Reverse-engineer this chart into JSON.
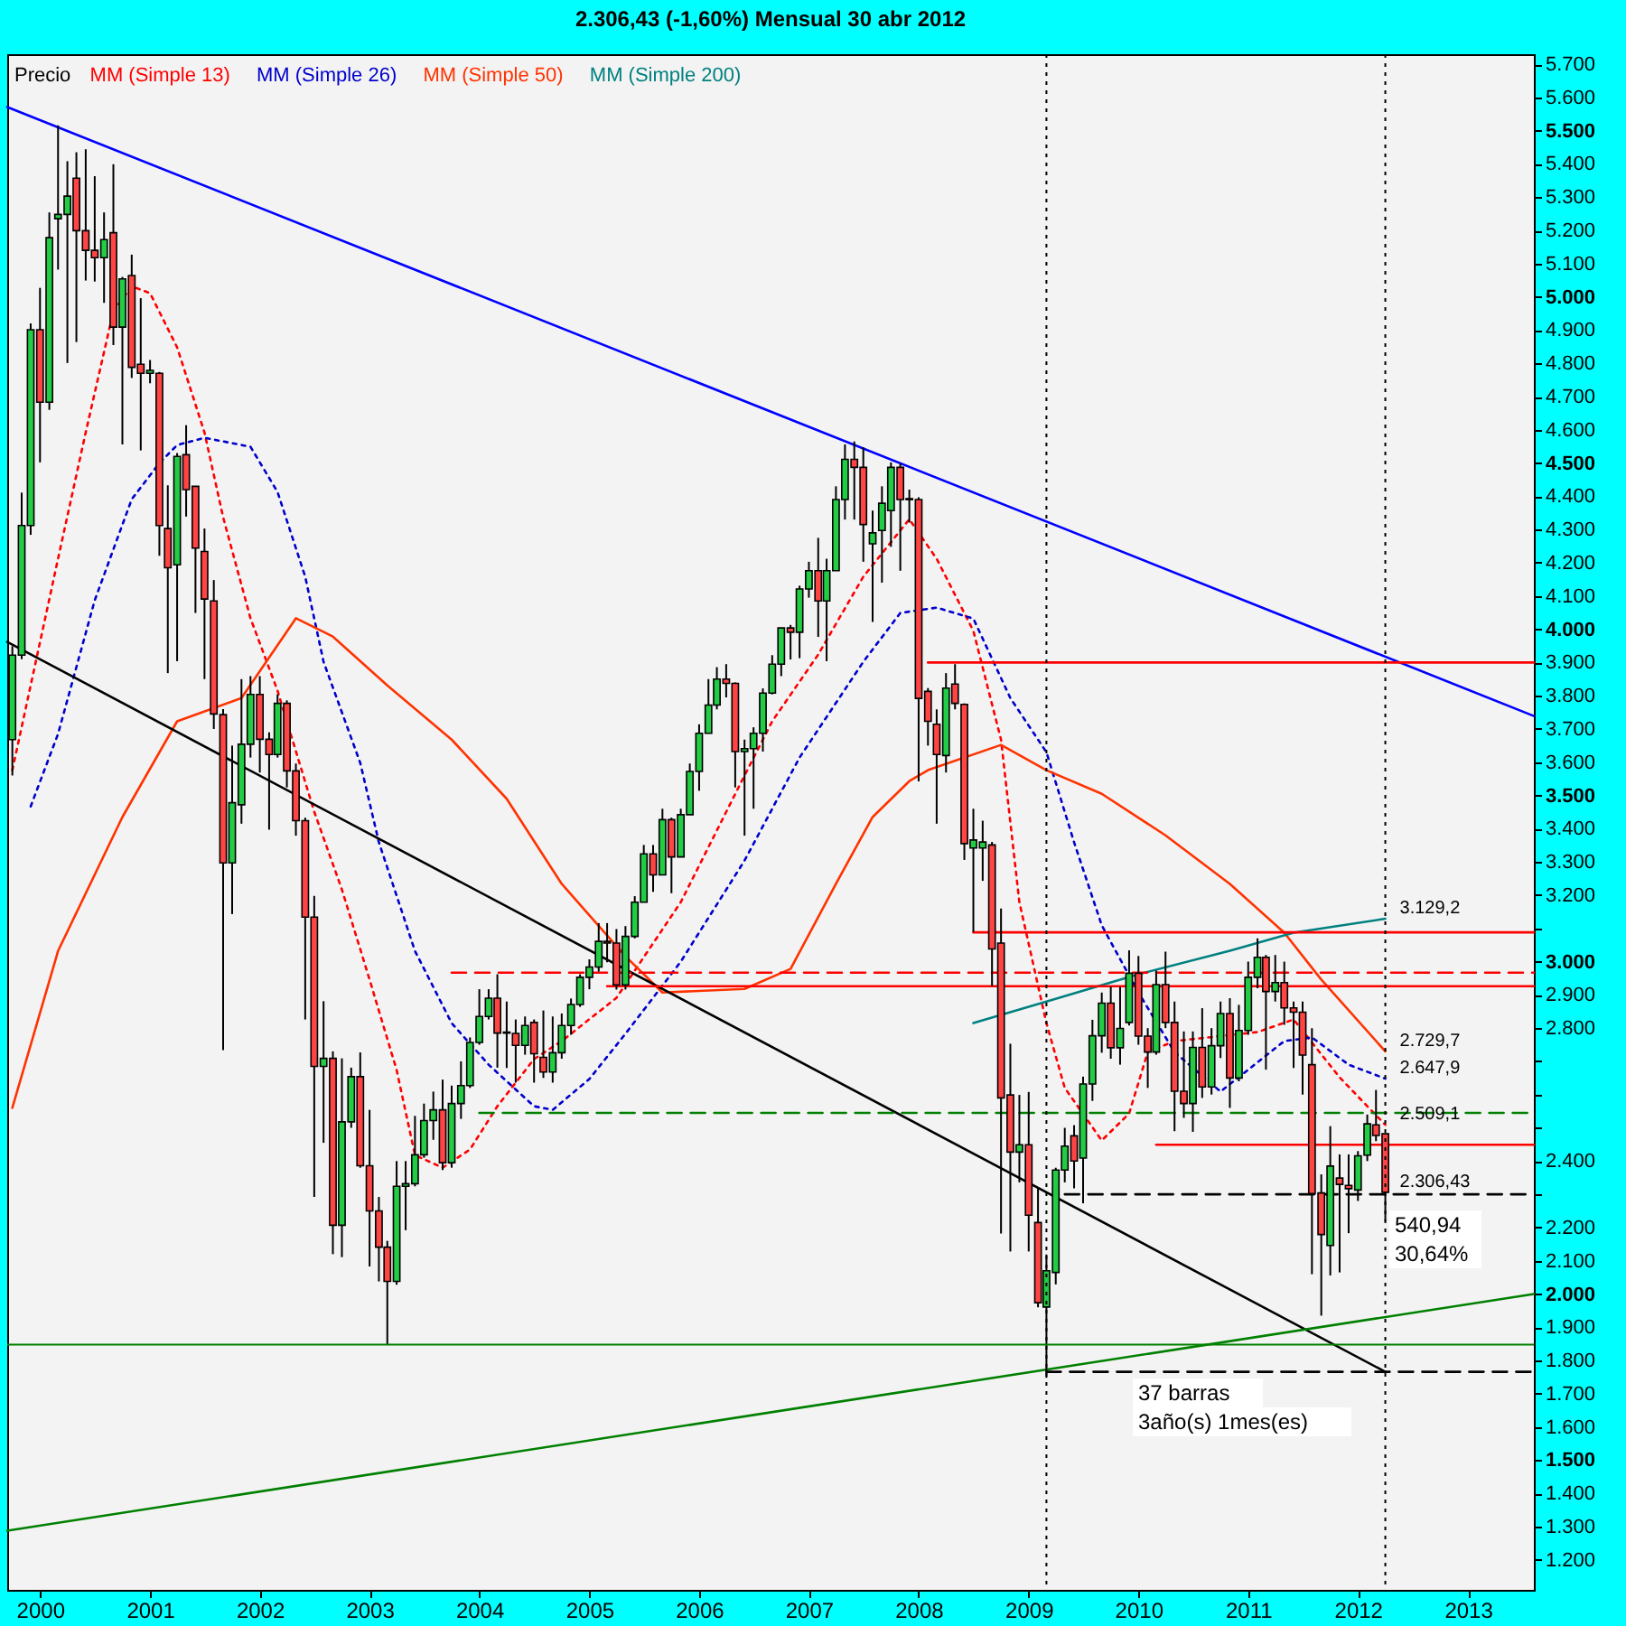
{
  "chart_data": {
    "type": "candlestick",
    "title": "2.306,43 (-1,60%)    Mensual  30 abr 2012",
    "legend": "top left",
    "xlim": [
      "1999-09-14",
      "2013-08-08"
    ],
    "ylim": [
      1110,
      5730
    ],
    "xticks": [
      "2000",
      "2001",
      "2002",
      "2003",
      "2004",
      "2005",
      "2006",
      "2007",
      "2008",
      "2009",
      "2010",
      "2011",
      "2012",
      "2013"
    ],
    "yticks": [
      {
        "value": 1200,
        "label": "1.200"
      },
      {
        "value": 1300,
        "label": "1.300"
      },
      {
        "value": 1400,
        "label": "1.400"
      },
      {
        "value": 1500,
        "label": "1.500"
      },
      {
        "value": 1600,
        "label": "1.600"
      },
      {
        "value": 1700,
        "label": "1.700"
      },
      {
        "value": 1800,
        "label": "1.800"
      },
      {
        "value": 1900,
        "label": "1.900"
      },
      {
        "value": 2000,
        "label": "2.000"
      },
      {
        "value": 2100,
        "label": "2.100"
      },
      {
        "value": 2200,
        "label": "2.200"
      },
      {
        "value": 2300,
        "label": null
      },
      {
        "value": 2400,
        "label": "2.400"
      },
      {
        "value": 2500,
        "label": null
      },
      {
        "value": 2600,
        "label": null
      },
      {
        "value": 2700,
        "label": null
      },
      {
        "value": 2800,
        "label": "2.800"
      },
      {
        "value": 2900,
        "label": "2.900"
      },
      {
        "value": 3000,
        "label": "3.000"
      },
      {
        "value": 3100,
        "label": null
      },
      {
        "value": 3200,
        "label": "3.200"
      },
      {
        "value": 3300,
        "label": "3.300"
      },
      {
        "value": 3400,
        "label": "3.400"
      },
      {
        "value": 3500,
        "label": "3.500"
      },
      {
        "value": 3600,
        "label": "3.600"
      },
      {
        "value": 3700,
        "label": "3.700"
      },
      {
        "value": 3800,
        "label": "3.800"
      },
      {
        "value": 3900,
        "label": "3.900"
      },
      {
        "value": 4000,
        "label": "4.000"
      },
      {
        "value": 4100,
        "label": "4.100"
      },
      {
        "value": 4200,
        "label": "4.200"
      },
      {
        "value": 4300,
        "label": "4.300"
      },
      {
        "value": 4400,
        "label": "4.400"
      },
      {
        "value": 4500,
        "label": "4.500"
      },
      {
        "value": 4600,
        "label": "4.600"
      },
      {
        "value": 4700,
        "label": "4.700"
      },
      {
        "value": 4800,
        "label": "4.800"
      },
      {
        "value": 4900,
        "label": "4.900"
      },
      {
        "value": 5000,
        "label": "5.000"
      },
      {
        "value": 5100,
        "label": "5.100"
      },
      {
        "value": 5200,
        "label": "5.200"
      },
      {
        "value": 5300,
        "label": "5.300"
      },
      {
        "value": 5400,
        "label": "5.400"
      },
      {
        "value": 5500,
        "label": "5.500"
      },
      {
        "value": 5600,
        "label": "5.600"
      },
      {
        "value": 5700,
        "label": "5.700"
      }
    ],
    "series": [
      {
        "name": "Precio",
        "colors": [
          "#22cc44",
          "#22cc44",
          "#22cc44",
          "#ff4444",
          "#22cc44",
          "#22cc44",
          "#22cc44",
          "#ff4444",
          "#ff4444",
          "#ff4444",
          "#22cc44",
          "#ff4444",
          "#22cc44",
          "#ff4444",
          "#ff4444",
          "#22cc44",
          "#ff4444",
          "#ff4444",
          "#22cc44",
          "#ff4444",
          "#ff4444",
          "#ff4444",
          "#ff4444",
          "#ff4444",
          "#22cc44",
          "#22cc44",
          "#22cc44",
          "#ff4444",
          "#ff4444",
          "#22cc44",
          "#ff4444",
          "#ff4444",
          "#ff4444",
          "#ff4444",
          "#22cc44",
          "#ff4444",
          "#22cc44",
          "#22cc44",
          "#ff4444",
          "#ff4444",
          "#ff4444",
          "#ff4444",
          "#22cc44",
          "#22cc44",
          "#22cc44",
          "#22cc44",
          "#22cc44",
          "#ff4444",
          "#22cc44",
          "#22cc44",
          "#22cc44",
          "#22cc44",
          "#22cc44",
          "#ff4444",
          "#22cc44",
          "#ff4444",
          "#22cc44",
          "#ff4444",
          "#ff4444",
          "#22cc44",
          "#22cc44",
          "#22cc44",
          "#22cc44",
          "#22cc44",
          "#22cc44",
          "#ff4444",
          "#ff4444",
          "#22cc44",
          "#22cc44",
          "#22cc44",
          "#ff4444",
          "#22cc44",
          "#ff4444",
          "#22cc44",
          "#22cc44",
          "#22cc44",
          "#22cc44",
          "#22cc44",
          "#ff4444",
          "#ff4444",
          "#22cc44",
          "#22cc44",
          "#22cc44",
          "#22cc44",
          "#22cc44",
          "#ff4444",
          "#22cc44",
          "#22cc44",
          "#ff4444",
          "#22cc44",
          "#22cc44",
          "#22cc44",
          "#ff4444",
          "#ff4444",
          "#22cc44",
          "#22cc44",
          "#22cc44",
          "#ff4444",
          "#22cc44",
          "#ff4444",
          "#ff4444",
          "#ff4444",
          "#22cc44",
          "#ff4444",
          "#ff4444",
          "#22cc44",
          "#22cc44",
          "#ff4444",
          "#ff4444",
          "#ff4444",
          "#22cc44",
          "#ff4444",
          "#ff4444",
          "#22cc44",
          "#22cc44",
          "#22cc44",
          "#ff4444",
          "#22cc44",
          "#22cc44",
          "#22cc44",
          "#ff4444",
          "#22cc44",
          "#22cc44",
          "#ff4444",
          "#ff4444",
          "#22cc44",
          "#ff4444",
          "#ff4444",
          "#ff4444",
          "#22cc44",
          "#ff4444",
          "#22cc44",
          "#22cc44",
          "#ff4444",
          "#22cc44",
          "#22cc44",
          "#22cc44",
          "#ff4444",
          "#22cc44",
          "#ff4444",
          "#ff4444",
          "#ff4444",
          "#ff4444",
          "#ff4444",
          "#22cc44",
          "#ff4444",
          "#ff4444",
          "#22cc44",
          "#22cc44",
          "#ff4444",
          "#ff4444"
        ],
        "x": [
          "1999-10",
          "1999-11",
          "1999-12",
          "2000-01",
          "2000-02",
          "2000-03",
          "2000-04",
          "2000-05",
          "2000-06",
          "2000-07",
          "2000-08",
          "2000-09",
          "2000-10",
          "2000-11",
          "2000-12",
          "2001-01",
          "2001-02",
          "2001-03",
          "2001-04",
          "2001-05",
          "2001-06",
          "2001-07",
          "2001-08",
          "2001-09",
          "2001-10",
          "2001-11",
          "2001-12",
          "2002-01",
          "2002-02",
          "2002-03",
          "2002-04",
          "2002-05",
          "2002-06",
          "2002-07",
          "2002-08",
          "2002-09",
          "2002-10",
          "2002-11",
          "2002-12",
          "2003-01",
          "2003-02",
          "2003-03",
          "2003-04",
          "2003-05",
          "2003-06",
          "2003-07",
          "2003-08",
          "2003-09",
          "2003-10",
          "2003-11",
          "2003-12",
          "2004-01",
          "2004-02",
          "2004-03",
          "2004-04",
          "2004-05",
          "2004-06",
          "2004-07",
          "2004-08",
          "2004-09",
          "2004-10",
          "2004-11",
          "2004-12",
          "2005-01",
          "2005-02",
          "2005-03",
          "2005-04",
          "2005-05",
          "2005-06",
          "2005-07",
          "2005-08",
          "2005-09",
          "2005-10",
          "2005-11",
          "2005-12",
          "2006-01",
          "2006-02",
          "2006-03",
          "2006-04",
          "2006-05",
          "2006-06",
          "2006-07",
          "2006-08",
          "2006-09",
          "2006-10",
          "2006-11",
          "2006-12",
          "2007-01",
          "2007-02",
          "2007-03",
          "2007-04",
          "2007-05",
          "2007-06",
          "2007-07",
          "2007-08",
          "2007-09",
          "2007-10",
          "2007-11",
          "2007-12",
          "2008-01",
          "2008-02",
          "2008-03",
          "2008-04",
          "2008-05",
          "2008-06",
          "2008-07",
          "2008-08",
          "2008-09",
          "2008-10",
          "2008-11",
          "2008-12",
          "2009-01",
          "2009-02",
          "2009-03",
          "2009-04",
          "2009-05",
          "2009-06",
          "2009-07",
          "2009-08",
          "2009-09",
          "2009-10",
          "2009-11",
          "2009-12",
          "2010-01",
          "2010-02",
          "2010-03",
          "2010-04",
          "2010-05",
          "2010-06",
          "2010-07",
          "2010-08",
          "2010-09",
          "2010-10",
          "2010-11",
          "2010-12",
          "2011-01",
          "2011-02",
          "2011-03",
          "2011-04",
          "2011-05",
          "2011-06",
          "2011-07",
          "2011-08",
          "2011-09",
          "2011-10",
          "2011-11",
          "2011-12",
          "2012-01",
          "2012-02",
          "2012-03",
          "2012-04"
        ],
        "ohlc": [
          [
            3668,
            3949,
            3560,
            3922
          ],
          [
            3922,
            4411,
            3910,
            4312
          ],
          [
            4312,
            4920,
            4284,
            4901
          ],
          [
            4901,
            5027,
            4502,
            4683
          ],
          [
            4683,
            5254,
            4660,
            5178
          ],
          [
            5235,
            5516,
            5082,
            5248
          ],
          [
            5248,
            5408,
            4801,
            5303
          ],
          [
            5357,
            5435,
            4864,
            5199
          ],
          [
            5199,
            5444,
            5049,
            5140
          ],
          [
            5140,
            5363,
            5046,
            5118
          ],
          [
            5118,
            5254,
            4982,
            5172
          ],
          [
            5193,
            5399,
            4855,
            4909
          ],
          [
            4909,
            5060,
            4556,
            5054
          ],
          [
            5064,
            5127,
            4756,
            4788
          ],
          [
            4797,
            4996,
            4538,
            4770
          ],
          [
            4770,
            4810,
            4740,
            4779
          ],
          [
            4770,
            4774,
            4221,
            4312
          ],
          [
            4303,
            4433,
            3868,
            4185
          ],
          [
            4194,
            4530,
            3904,
            4520
          ],
          [
            4525,
            4614,
            4339,
            4420
          ],
          [
            4430,
            4430,
            4049,
            4244
          ],
          [
            4234,
            4303,
            3850,
            4091
          ],
          [
            4085,
            4148,
            3700,
            3745
          ],
          [
            3743,
            3760,
            2734,
            3297
          ],
          [
            3297,
            3650,
            3143,
            3478
          ],
          [
            3472,
            3850,
            3415,
            3654
          ],
          [
            3654,
            3859,
            3614,
            3804
          ],
          [
            3804,
            3859,
            3569,
            3669
          ],
          [
            3669,
            3690,
            3397,
            3623
          ],
          [
            3623,
            3804,
            3614,
            3777
          ],
          [
            3777,
            3786,
            3524,
            3574
          ],
          [
            3574,
            3596,
            3379,
            3424
          ],
          [
            3424,
            3433,
            2826,
            3134
          ],
          [
            3134,
            3198,
            2292,
            2685
          ],
          [
            2685,
            2881,
            2455,
            2709
          ],
          [
            2709,
            2730,
            2120,
            2207
          ],
          [
            2207,
            2709,
            2111,
            2518
          ],
          [
            2518,
            2681,
            2500,
            2654
          ],
          [
            2654,
            2727,
            2380,
            2386
          ],
          [
            2386,
            2554,
            2083,
            2250
          ],
          [
            2250,
            2292,
            2038,
            2141
          ],
          [
            2141,
            2160,
            1848,
            2038
          ],
          [
            2038,
            2400,
            2028,
            2324
          ],
          [
            2324,
            2400,
            2192,
            2332
          ],
          [
            2332,
            2536,
            2324,
            2419
          ],
          [
            2419,
            2573,
            2410,
            2522
          ],
          [
            2522,
            2609,
            2464,
            2554
          ],
          [
            2554,
            2645,
            2373,
            2395
          ],
          [
            2395,
            2627,
            2380,
            2573
          ],
          [
            2573,
            2700,
            2527,
            2627
          ],
          [
            2627,
            2772,
            2620,
            2757
          ],
          [
            2757,
            2917,
            2750,
            2835
          ],
          [
            2835,
            2917,
            2826,
            2890
          ],
          [
            2890,
            2962,
            2681,
            2785
          ],
          [
            2785,
            2880,
            2680,
            2788
          ],
          [
            2784,
            2826,
            2636,
            2748
          ],
          [
            2748,
            2835,
            2720,
            2808
          ],
          [
            2817,
            2826,
            2636,
            2723
          ],
          [
            2712,
            2853,
            2650,
            2668
          ],
          [
            2668,
            2835,
            2636,
            2726
          ],
          [
            2726,
            2844,
            2708,
            2808
          ],
          [
            2808,
            2889,
            2780,
            2871
          ],
          [
            2871,
            2962,
            2864,
            2953
          ],
          [
            2953,
            3007,
            2917,
            2984
          ],
          [
            2984,
            3116,
            2970,
            3061
          ],
          [
            3061,
            3116,
            2998,
            3056
          ],
          [
            3056,
            3098,
            2916,
            2930
          ],
          [
            2930,
            3107,
            2916,
            3076
          ],
          [
            3076,
            3197,
            3070,
            3179
          ],
          [
            3179,
            3351,
            3179,
            3324
          ],
          [
            3324,
            3351,
            3210,
            3261
          ],
          [
            3261,
            3460,
            3261,
            3427
          ],
          [
            3427,
            3433,
            3206,
            3315
          ],
          [
            3315,
            3460,
            3315,
            3442
          ],
          [
            3442,
            3596,
            3442,
            3572
          ],
          [
            3572,
            3714,
            3514,
            3687
          ],
          [
            3687,
            3850,
            3687,
            3772
          ],
          [
            3772,
            3886,
            3759,
            3850
          ],
          [
            3850,
            3895,
            3795,
            3837
          ],
          [
            3837,
            3840,
            3524,
            3632
          ],
          [
            3632,
            3668,
            3379,
            3641
          ],
          [
            3641,
            3705,
            3460,
            3687
          ],
          [
            3687,
            3822,
            3632,
            3808
          ],
          [
            3808,
            3922,
            3804,
            3895
          ],
          [
            3895,
            4004,
            3859,
            4004
          ],
          [
            4004,
            4013,
            3909,
            3991
          ],
          [
            3991,
            4131,
            3913,
            4121
          ],
          [
            4121,
            4203,
            4095,
            4176
          ],
          [
            4176,
            4275,
            3977,
            4085
          ],
          [
            4085,
            4212,
            3904,
            4176
          ],
          [
            4176,
            4430,
            4176,
            4390
          ],
          [
            4390,
            4556,
            4330,
            4511
          ],
          [
            4511,
            4565,
            4330,
            4487
          ],
          [
            4487,
            4547,
            4203,
            4315
          ],
          [
            4257,
            4357,
            4022,
            4290
          ],
          [
            4297,
            4430,
            4140,
            4379
          ],
          [
            4357,
            4502,
            4248,
            4487
          ],
          [
            4487,
            4498,
            4176,
            4390
          ],
          [
            4390,
            4420,
            4321,
            4393
          ],
          [
            4390,
            4397,
            3542,
            3792
          ],
          [
            3813,
            3823,
            3650,
            3723
          ],
          [
            3714,
            3759,
            3415,
            3623
          ],
          [
            3620,
            3868,
            3569,
            3823
          ],
          [
            3835,
            3895,
            3759,
            3777
          ],
          [
            3774,
            3777,
            3306,
            3355
          ],
          [
            3342,
            3460,
            3089,
            3366
          ],
          [
            3342,
            3424,
            3243,
            3360
          ],
          [
            3351,
            3360,
            2926,
            3038
          ],
          [
            3056,
            3160,
            2182,
            2590
          ],
          [
            2599,
            2753,
            2128,
            2427
          ],
          [
            2427,
            2599,
            2336,
            2449
          ],
          [
            2449,
            2608,
            2128,
            2237
          ],
          [
            2215,
            2318,
            1960,
            1974
          ],
          [
            1961,
            2119,
            1748,
            2070
          ],
          [
            2065,
            2380,
            2029,
            2373
          ],
          [
            2373,
            2500,
            2336,
            2445
          ],
          [
            2476,
            2508,
            2318,
            2400
          ],
          [
            2409,
            2654,
            2273,
            2632
          ],
          [
            2632,
            2825,
            2581,
            2777
          ],
          [
            2777,
            2907,
            2726,
            2875
          ],
          [
            2875,
            2925,
            2708,
            2741
          ],
          [
            2741,
            2925,
            2690,
            2799
          ],
          [
            2817,
            3034,
            2808,
            2965
          ],
          [
            2965,
            3017,
            2750,
            2776
          ],
          [
            2776,
            2800,
            2620,
            2728
          ],
          [
            2728,
            2973,
            2720,
            2931
          ],
          [
            2931,
            3030,
            2800,
            2817
          ],
          [
            2817,
            2880,
            2490,
            2610
          ],
          [
            2610,
            2790,
            2530,
            2573
          ],
          [
            2573,
            2790,
            2488,
            2742
          ],
          [
            2742,
            2860,
            2590,
            2623
          ],
          [
            2623,
            2800,
            2600,
            2747
          ],
          [
            2747,
            2880,
            2710,
            2844
          ],
          [
            2844,
            2890,
            2560,
            2650
          ],
          [
            2650,
            2870,
            2640,
            2793
          ],
          [
            2793,
            3000,
            2780,
            2953
          ],
          [
            2953,
            3070,
            2920,
            3013
          ],
          [
            3013,
            3020,
            2675,
            2910
          ],
          [
            2910,
            3020,
            2880,
            2937
          ],
          [
            2937,
            3000,
            2810,
            2861
          ],
          [
            2861,
            2880,
            2680,
            2848
          ],
          [
            2848,
            2880,
            2600,
            2719
          ],
          [
            2690,
            2800,
            2060,
            2302
          ],
          [
            2304,
            2360,
            1935,
            2179
          ],
          [
            2146,
            2505,
            2056,
            2385
          ],
          [
            2349,
            2420,
            2065,
            2330
          ],
          [
            2327,
            2420,
            2183,
            2317
          ],
          [
            2313,
            2430,
            2280,
            2416
          ],
          [
            2418,
            2540,
            2400,
            2512
          ],
          [
            2509,
            2614,
            2460,
            2477
          ],
          [
            2482,
            2482,
            2219,
            2306
          ]
        ]
      },
      {
        "name": "MM (Simple 13)",
        "type": "line",
        "color": "#ff0000",
        "line_style": "dotted",
        "x": [
          "1999-10",
          "2000-03",
          "2000-06",
          "2000-09",
          "2000-11",
          "2001-01",
          "2001-04",
          "2001-07",
          "2001-09",
          "2001-12",
          "2002-03",
          "2002-07",
          "2002-10",
          "2003-01",
          "2003-04",
          "2003-06",
          "2003-09",
          "2003-12",
          "2004-03",
          "2004-07",
          "2004-10",
          "2005-04",
          "2005-11",
          "2006-06",
          "2006-09",
          "2007-02",
          "2007-07",
          "2007-12",
          "2008-03",
          "2008-07",
          "2008-10",
          "2008-12",
          "2009-03",
          "2009-05",
          "2009-09",
          "2009-12",
          "2010-02",
          "2010-05",
          "2011-02",
          "2011-06",
          "2011-11",
          "2012-02",
          "2012-04"
        ],
        "values": [
          3576,
          4212,
          4592,
          4957,
          5032,
          5011,
          4848,
          4592,
          4337,
          4033,
          3815,
          3451,
          3217,
          2946,
          2674,
          2418,
          2380,
          2435,
          2565,
          2707,
          2761,
          2891,
          3179,
          3560,
          3723,
          3924,
          4158,
          4331,
          4212,
          3995,
          3668,
          3179,
          2815,
          2620,
          2462,
          2543,
          2728,
          2761,
          2788,
          2826,
          2652,
          2565,
          2509
        ]
      },
      {
        "name": "MM (Simple 26)",
        "type": "line",
        "color": "#0000cc",
        "line_style": "dotted",
        "x": [
          "1999-12",
          "2000-03",
          "2000-07",
          "2000-11",
          "2001-02",
          "2001-04",
          "2001-07",
          "2001-12",
          "2002-03",
          "2002-06",
          "2002-08",
          "2002-12",
          "2003-02",
          "2003-06",
          "2003-10",
          "2004-02",
          "2004-07",
          "2004-09",
          "2005-01",
          "2005-05",
          "2005-11",
          "2006-06",
          "2006-12",
          "2007-07",
          "2007-11",
          "2008-03",
          "2008-07",
          "2008-11",
          "2009-03",
          "2009-06",
          "2009-09",
          "2010-01",
          "2010-05",
          "2010-10",
          "2011-05",
          "2011-08",
          "2011-12",
          "2012-04"
        ],
        "values": [
          3467,
          3685,
          4087,
          4391,
          4500,
          4554,
          4576,
          4549,
          4413,
          4158,
          3902,
          3598,
          3359,
          3032,
          2815,
          2690,
          2565,
          2554,
          2647,
          2783,
          3000,
          3304,
          3614,
          3902,
          4049,
          4065,
          4032,
          3793,
          3630,
          3359,
          3109,
          2907,
          2728,
          2609,
          2761,
          2772,
          2690,
          2648
        ]
      },
      {
        "name": "MM (Simple 50)",
        "type": "line",
        "color": "#ff3300",
        "line_style": "solid",
        "x": [
          "1999-10",
          "2000-03",
          "2000-10",
          "2001-04",
          "2001-11",
          "2002-05",
          "2002-09",
          "2003-03",
          "2003-10",
          "2004-04",
          "2004-10",
          "2005-05",
          "2005-09",
          "2006-06",
          "2006-11",
          "2007-04",
          "2007-08",
          "2007-12",
          "2008-02",
          "2008-10",
          "2009-03",
          "2009-09",
          "2010-04",
          "2010-11",
          "2011-05",
          "2011-09",
          "2012-04"
        ],
        "values": [
          2560,
          3032,
          3435,
          3723,
          3793,
          4033,
          3978,
          3831,
          3668,
          3490,
          3234,
          3016,
          2907,
          2918,
          2978,
          3234,
          3435,
          3543,
          3576,
          3652,
          3576,
          3505,
          3380,
          3234,
          3087,
          2946,
          2730
        ]
      },
      {
        "name": "MM (Simple 200)",
        "type": "line",
        "color": "#008080",
        "line_style": "solid",
        "x": [
          "2008-07",
          "2009-03",
          "2010-01",
          "2010-11",
          "2011-06",
          "2012-04"
        ],
        "values": [
          2815,
          2880,
          2962,
          3033,
          3087,
          3129
        ]
      },
      {
        "type": "line",
        "color": "#0000ff",
        "line_style": "solid",
        "x": [
          "1999-09-14",
          "2013-08-08"
        ],
        "values": [
          5571,
          3739
        ]
      },
      {
        "type": "line",
        "color": "#000000",
        "line_style": "solid",
        "x": [
          "1999-09-14",
          "2012-04"
        ],
        "values": [
          3962,
          1766
        ]
      },
      {
        "type": "line",
        "color": "#008000",
        "line_style": "solid",
        "x": [
          "1999-09-14",
          "2013-08-08"
        ],
        "values": [
          1288,
          2000
        ]
      },
      {
        "type": "line",
        "color": "#ff0000",
        "line_style": "solid",
        "x": [
          "2008-02",
          "2013-08-08"
        ],
        "values": [
          3900,
          3900
        ]
      },
      {
        "type": "line",
        "color": "#ff0000",
        "line_style": "solid",
        "x": [
          "2008-07",
          "2013-08-08"
        ],
        "values": [
          3088,
          3088
        ]
      },
      {
        "type": "line",
        "color": "#ff0000",
        "line_style": "solid",
        "x": [
          "2005-03",
          "2013-08-08"
        ],
        "values": [
          2926,
          2926
        ]
      },
      {
        "type": "line",
        "color": "#ff0000",
        "line_style": "dashed",
        "x": [
          "2003-10",
          "2013-08-08"
        ],
        "values": [
          2967,
          2967
        ]
      },
      {
        "type": "line",
        "color": "#ff0000",
        "line_style": "solid",
        "x": [
          "2010-03",
          "2013-08-08"
        ],
        "values": [
          2449,
          2449
        ]
      },
      {
        "type": "line",
        "color": "#008000",
        "line_style": "dashed",
        "x": [
          "2004-01",
          "2013-08-08"
        ],
        "values": [
          2545,
          2545
        ]
      },
      {
        "type": "line",
        "color": "#000000",
        "line_style": "dashed",
        "x": [
          "2009-05",
          "2013-08-08"
        ],
        "values": [
          2300,
          2300
        ]
      },
      {
        "type": "line",
        "color": "#000000",
        "line_style": "dashed",
        "x": [
          "2009-03",
          "2013-08-08"
        ],
        "values": [
          1766,
          1766
        ]
      }
    ],
    "ref_lines": [
      {
        "axis": "x",
        "value": "2009-03",
        "color": "#000000",
        "line_style": "dotted"
      },
      {
        "axis": "x",
        "value": "2012-04",
        "color": "#000000",
        "line_style": "dotted"
      },
      {
        "axis": "y",
        "value": 1848,
        "color": "#008000",
        "line_style": "solid"
      }
    ],
    "annotations": [
      {
        "text": "3.129,2",
        "x": "2012-04",
        "y": 3129
      },
      {
        "text": "2.729,7",
        "x": "2012-04",
        "y": 2730
      },
      {
        "text": "2.647,9",
        "x": "2012-04",
        "y": 2648
      },
      {
        "text": "2.509,1",
        "x": "2012-04",
        "y": 2509
      },
      {
        "text": "2.306,43",
        "x": "2012-04",
        "y": 2306
      },
      "540,94",
      "30,64%",
      "37 barras",
      "3año(s) 1mes(es)"
    ]
  }
}
